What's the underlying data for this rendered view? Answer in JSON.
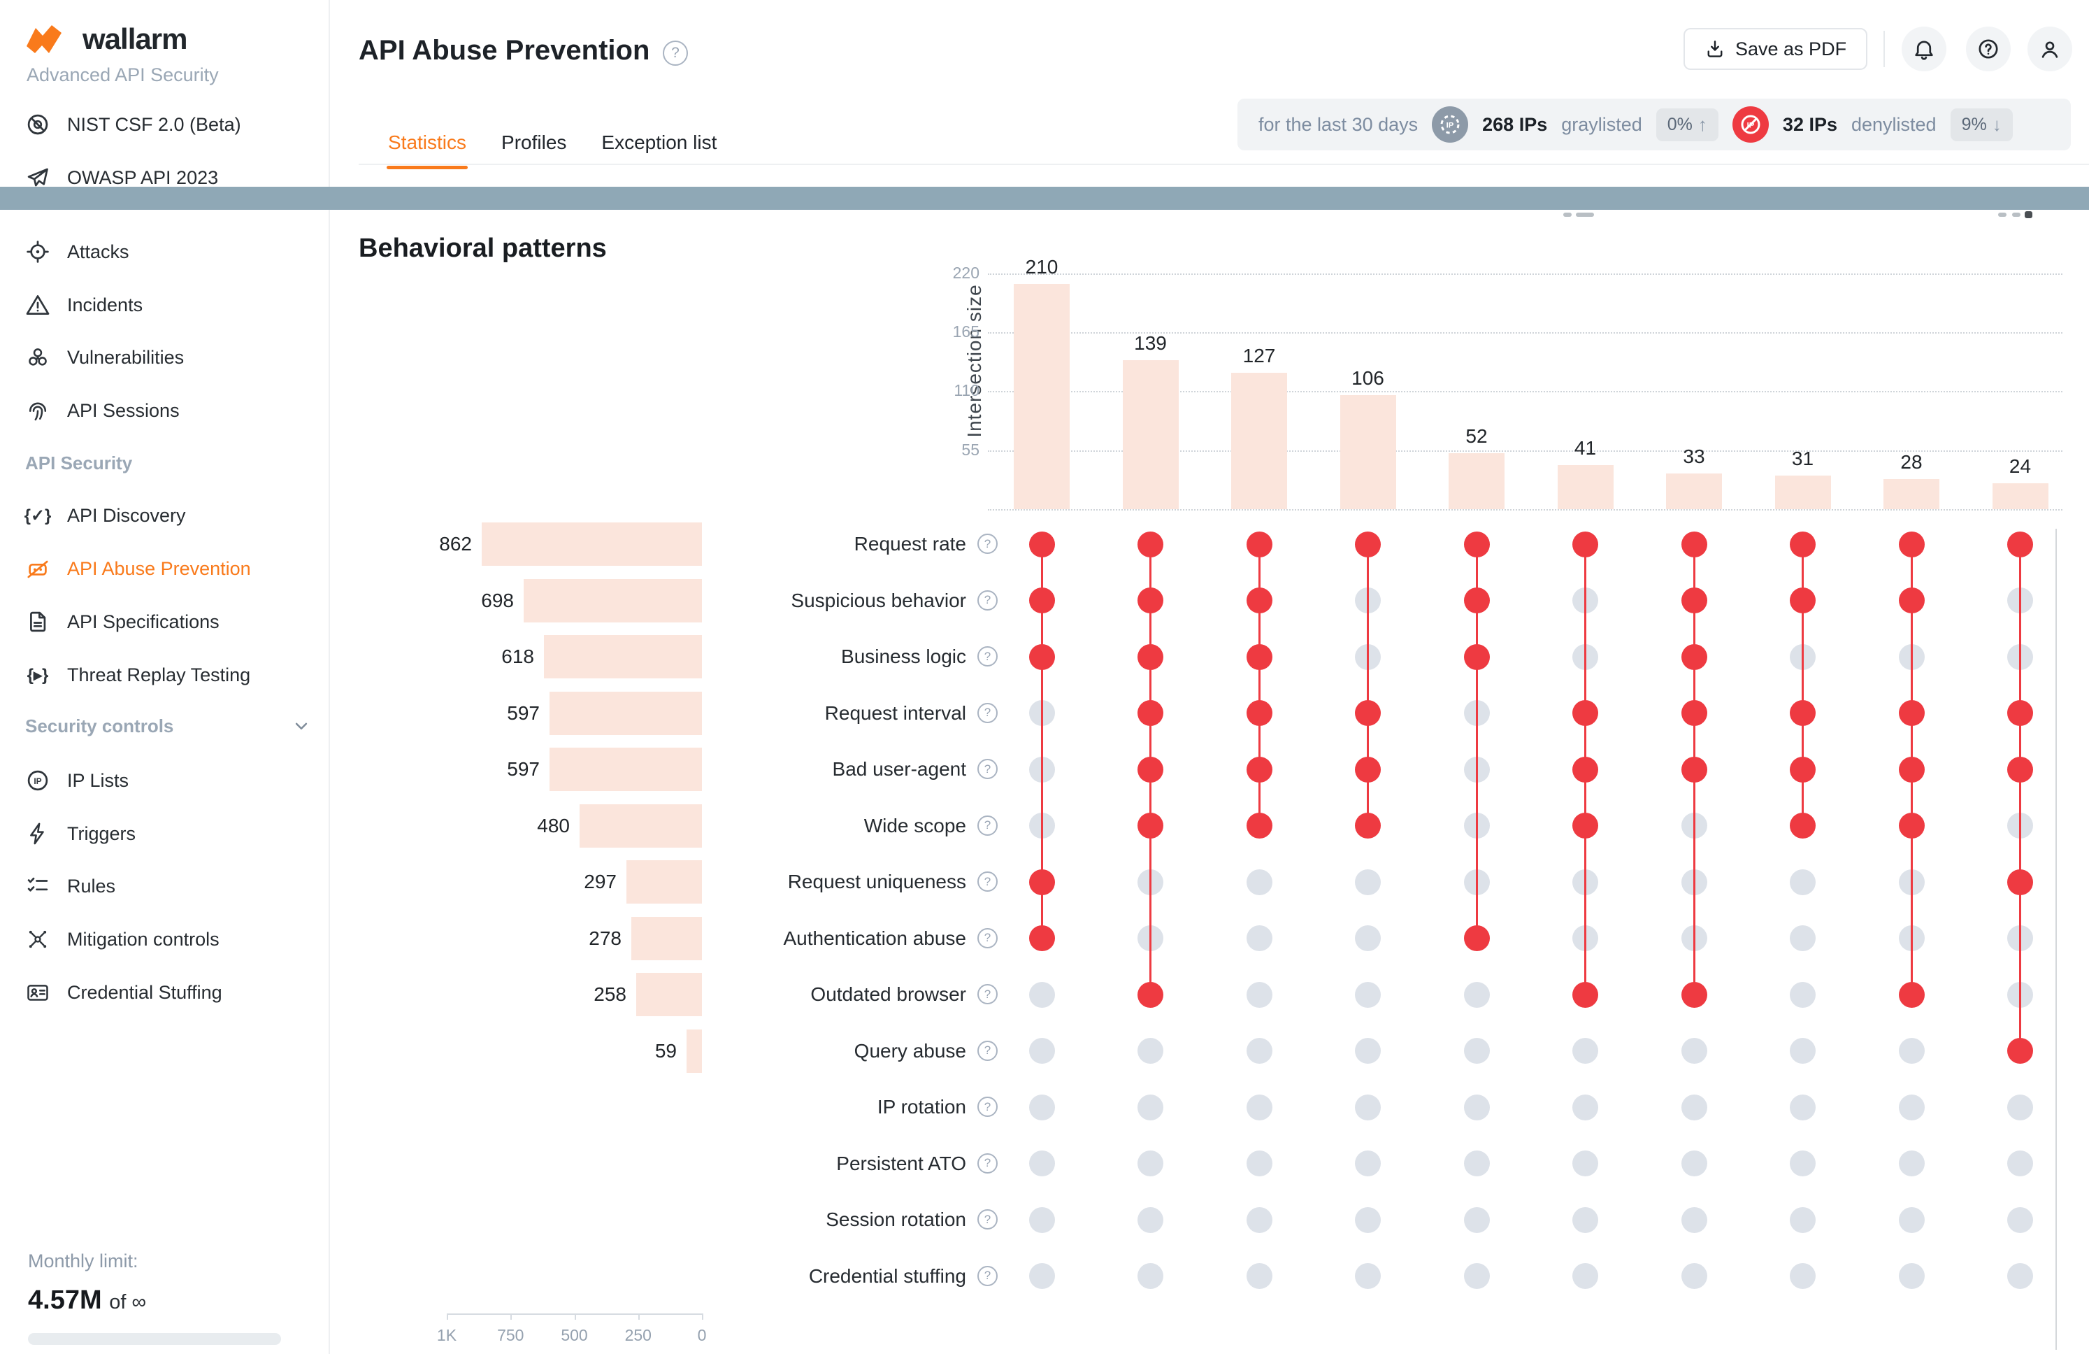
{
  "brand": {
    "name": "wallarm",
    "subtitle": "Advanced API Security"
  },
  "sidebar": {
    "top_items": [
      {
        "label": "NIST CSF 2.0 (Beta)",
        "icon": "nist-csf-icon"
      },
      {
        "label": "OWASP API 2023",
        "icon": "paper-plane-icon"
      }
    ],
    "menu": [
      {
        "label": "Attacks",
        "icon": "target-icon"
      },
      {
        "label": "Incidents",
        "icon": "warning-icon"
      },
      {
        "label": "Vulnerabilities",
        "icon": "biohazard-icon"
      },
      {
        "label": "API Sessions",
        "icon": "fingerprint-icon"
      }
    ],
    "sections": [
      {
        "title": "API Security",
        "items": [
          {
            "label": "API Discovery",
            "icon": "braces-check-icon",
            "active": false
          },
          {
            "label": "API Abuse Prevention",
            "icon": "bot-slash-icon",
            "active": true
          },
          {
            "label": "API Specifications",
            "icon": "document-icon",
            "active": false
          },
          {
            "label": "Threat Replay Testing",
            "icon": "braces-play-icon",
            "active": false
          }
        ]
      },
      {
        "title": "Security controls",
        "items": [
          {
            "label": "IP Lists",
            "icon": "ip-circle-icon",
            "active": false
          },
          {
            "label": "Triggers",
            "icon": "lightning-icon",
            "active": false
          },
          {
            "label": "Rules",
            "icon": "checklist-icon",
            "active": false
          },
          {
            "label": "Mitigation controls",
            "icon": "mitigation-icon",
            "active": false
          },
          {
            "label": "Credential Stuffing",
            "icon": "id-card-icon",
            "active": false
          }
        ]
      }
    ],
    "monthly_limit": {
      "label": "Monthly limit:",
      "used": "4.57M",
      "of": "of",
      "total": "∞"
    }
  },
  "header": {
    "title": "API Abuse Prevention",
    "save_pdf_label": "Save as PDF",
    "tabs": [
      {
        "label": "Statistics",
        "active": true
      },
      {
        "label": "Profiles",
        "active": false
      },
      {
        "label": "Exception list",
        "active": false
      }
    ]
  },
  "stats_bar": {
    "period": "for the last 30 days",
    "graylisted": {
      "count": "268 IPs",
      "label": "graylisted",
      "delta": "0%",
      "arrow": "↑"
    },
    "denylisted": {
      "count": "32 IPs",
      "label": "denylisted",
      "delta": "9%",
      "arrow": "↓"
    }
  },
  "chart_data": {
    "type": "upset",
    "title": "Behavioral patterns",
    "intersection_axis_label": "Intersection size",
    "intersection_ticks": [
      220,
      165,
      110,
      55
    ],
    "intersection_ylim": [
      0,
      240
    ],
    "categories": [
      "Request rate",
      "Suspicious behavior",
      "Business logic",
      "Request interval",
      "Bad user-agent",
      "Wide scope",
      "Request uniqueness",
      "Authentication abuse",
      "Outdated browser",
      "Query abuse",
      "IP rotation",
      "Persistent ATO",
      "Session rotation",
      "Credential stuffing"
    ],
    "set_sizes": [
      862,
      698,
      618,
      597,
      597,
      480,
      297,
      278,
      258,
      59,
      null,
      null,
      null,
      null
    ],
    "set_axis_ticks": [
      {
        "label": "1K",
        "value": 1000
      },
      {
        "label": "750",
        "value": 750
      },
      {
        "label": "500",
        "value": 500
      },
      {
        "label": "250",
        "value": 250
      },
      {
        "label": "0",
        "value": 0
      }
    ],
    "intersections": [
      {
        "size": 210,
        "sets": [
          0,
          1,
          2,
          6,
          7
        ]
      },
      {
        "size": 139,
        "sets": [
          0,
          1,
          2,
          3,
          4,
          5,
          8
        ]
      },
      {
        "size": 127,
        "sets": [
          0,
          1,
          2,
          3,
          4,
          5
        ]
      },
      {
        "size": 106,
        "sets": [
          0,
          3,
          4,
          5
        ]
      },
      {
        "size": 52,
        "sets": [
          0,
          1,
          2,
          7
        ]
      },
      {
        "size": 41,
        "sets": [
          0,
          3,
          4,
          5,
          8
        ]
      },
      {
        "size": 33,
        "sets": [
          0,
          1,
          2,
          3,
          4,
          8
        ]
      },
      {
        "size": 31,
        "sets": [
          0,
          1,
          3,
          4,
          5
        ]
      },
      {
        "size": 28,
        "sets": [
          0,
          1,
          3,
          4,
          5,
          8
        ]
      },
      {
        "size": 24,
        "sets": [
          0,
          3,
          4,
          6,
          9
        ]
      }
    ],
    "legend": "none",
    "grid": "dotted-horizontal"
  },
  "colors": {
    "accent_orange": "#f97a1b",
    "alert_red": "#ee3a41",
    "bar_pink": "#fbe5dc",
    "dot_inactive": "#dde2e9",
    "band_teal": "#8fa8b6"
  }
}
